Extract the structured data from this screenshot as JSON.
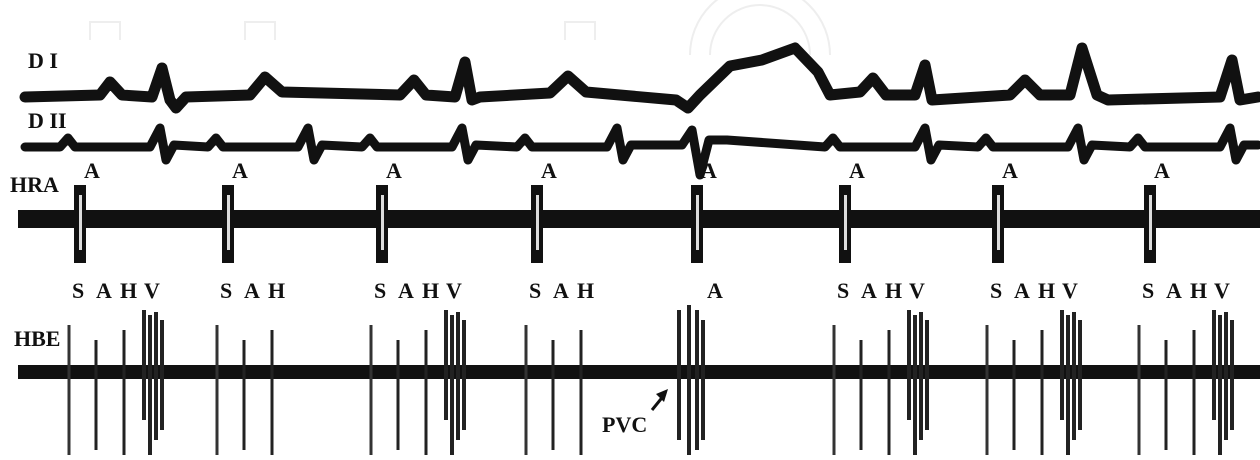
{
  "leads": [
    "D I",
    "D II",
    "HRA",
    "HBE"
  ],
  "hra_labels": [
    "A",
    "A",
    "A",
    "A",
    "A",
    "A",
    "A",
    "A"
  ],
  "hbe_labels": [
    [
      "S",
      "A",
      "H",
      "V"
    ],
    [
      "S",
      "A",
      "H"
    ],
    [
      "S",
      "A",
      "H",
      "V"
    ],
    [
      "S",
      "A",
      "H"
    ],
    [
      "A"
    ],
    [
      "S",
      "A",
      "H",
      "V"
    ],
    [
      "S",
      "A",
      "H",
      "V"
    ],
    [
      "S",
      "A",
      "H",
      "V"
    ]
  ],
  "annotation": "PVC"
}
